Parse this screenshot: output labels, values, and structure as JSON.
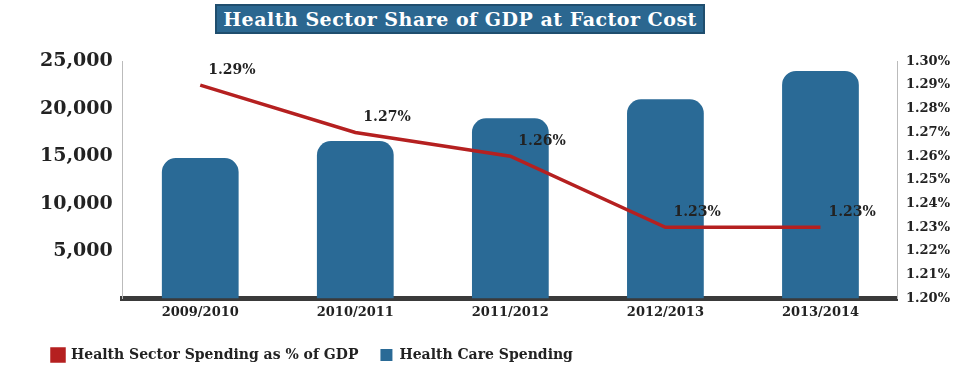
{
  "chart_data": {
    "type": "bar",
    "title": "Health Sector Share of GDP at Factor Cost",
    "categories": [
      "2009/2010",
      "2010/2011",
      "2011/2012",
      "2012/2013",
      "2013/2014"
    ],
    "series": [
      {
        "name": "Health Care Spending",
        "type": "bar",
        "color": "#2a6a96",
        "values": [
          14800,
          16600,
          19000,
          21000,
          24000
        ]
      },
      {
        "name": "Health Sector Spending as % of GDP",
        "type": "line",
        "color": "#b52020",
        "axis": "y2",
        "values": [
          1.29,
          1.27,
          1.26,
          1.23,
          1.23
        ],
        "value_labels": [
          "1.29%",
          "1.27%",
          "1.26%",
          "1.23%",
          "1.23%"
        ],
        "data_labels": true
      }
    ],
    "ylim": [
      0,
      25000
    ],
    "yticks": [
      {
        "value": 5000,
        "label": "5,000"
      },
      {
        "value": 10000,
        "label": "10,000"
      },
      {
        "value": 15000,
        "label": "15,000"
      },
      {
        "value": 20000,
        "label": "20,000"
      },
      {
        "value": 25000,
        "label": "25,000"
      }
    ],
    "y2lim": [
      1.2,
      1.3
    ],
    "y2ticks": [
      {
        "value": 1.2,
        "label": "1.20%"
      },
      {
        "value": 1.21,
        "label": "1.21%"
      },
      {
        "value": 1.22,
        "label": "1.22%"
      },
      {
        "value": 1.23,
        "label": "1.23%"
      },
      {
        "value": 1.24,
        "label": "1.24%"
      },
      {
        "value": 1.25,
        "label": "1.25%"
      },
      {
        "value": 1.26,
        "label": "1.26%"
      },
      {
        "value": 1.27,
        "label": "1.27%"
      },
      {
        "value": 1.28,
        "label": "1.28%"
      },
      {
        "value": 1.29,
        "label": "1.29%"
      },
      {
        "value": 1.3,
        "label": "1.30%"
      }
    ],
    "grid": false,
    "legend": "bottom"
  }
}
